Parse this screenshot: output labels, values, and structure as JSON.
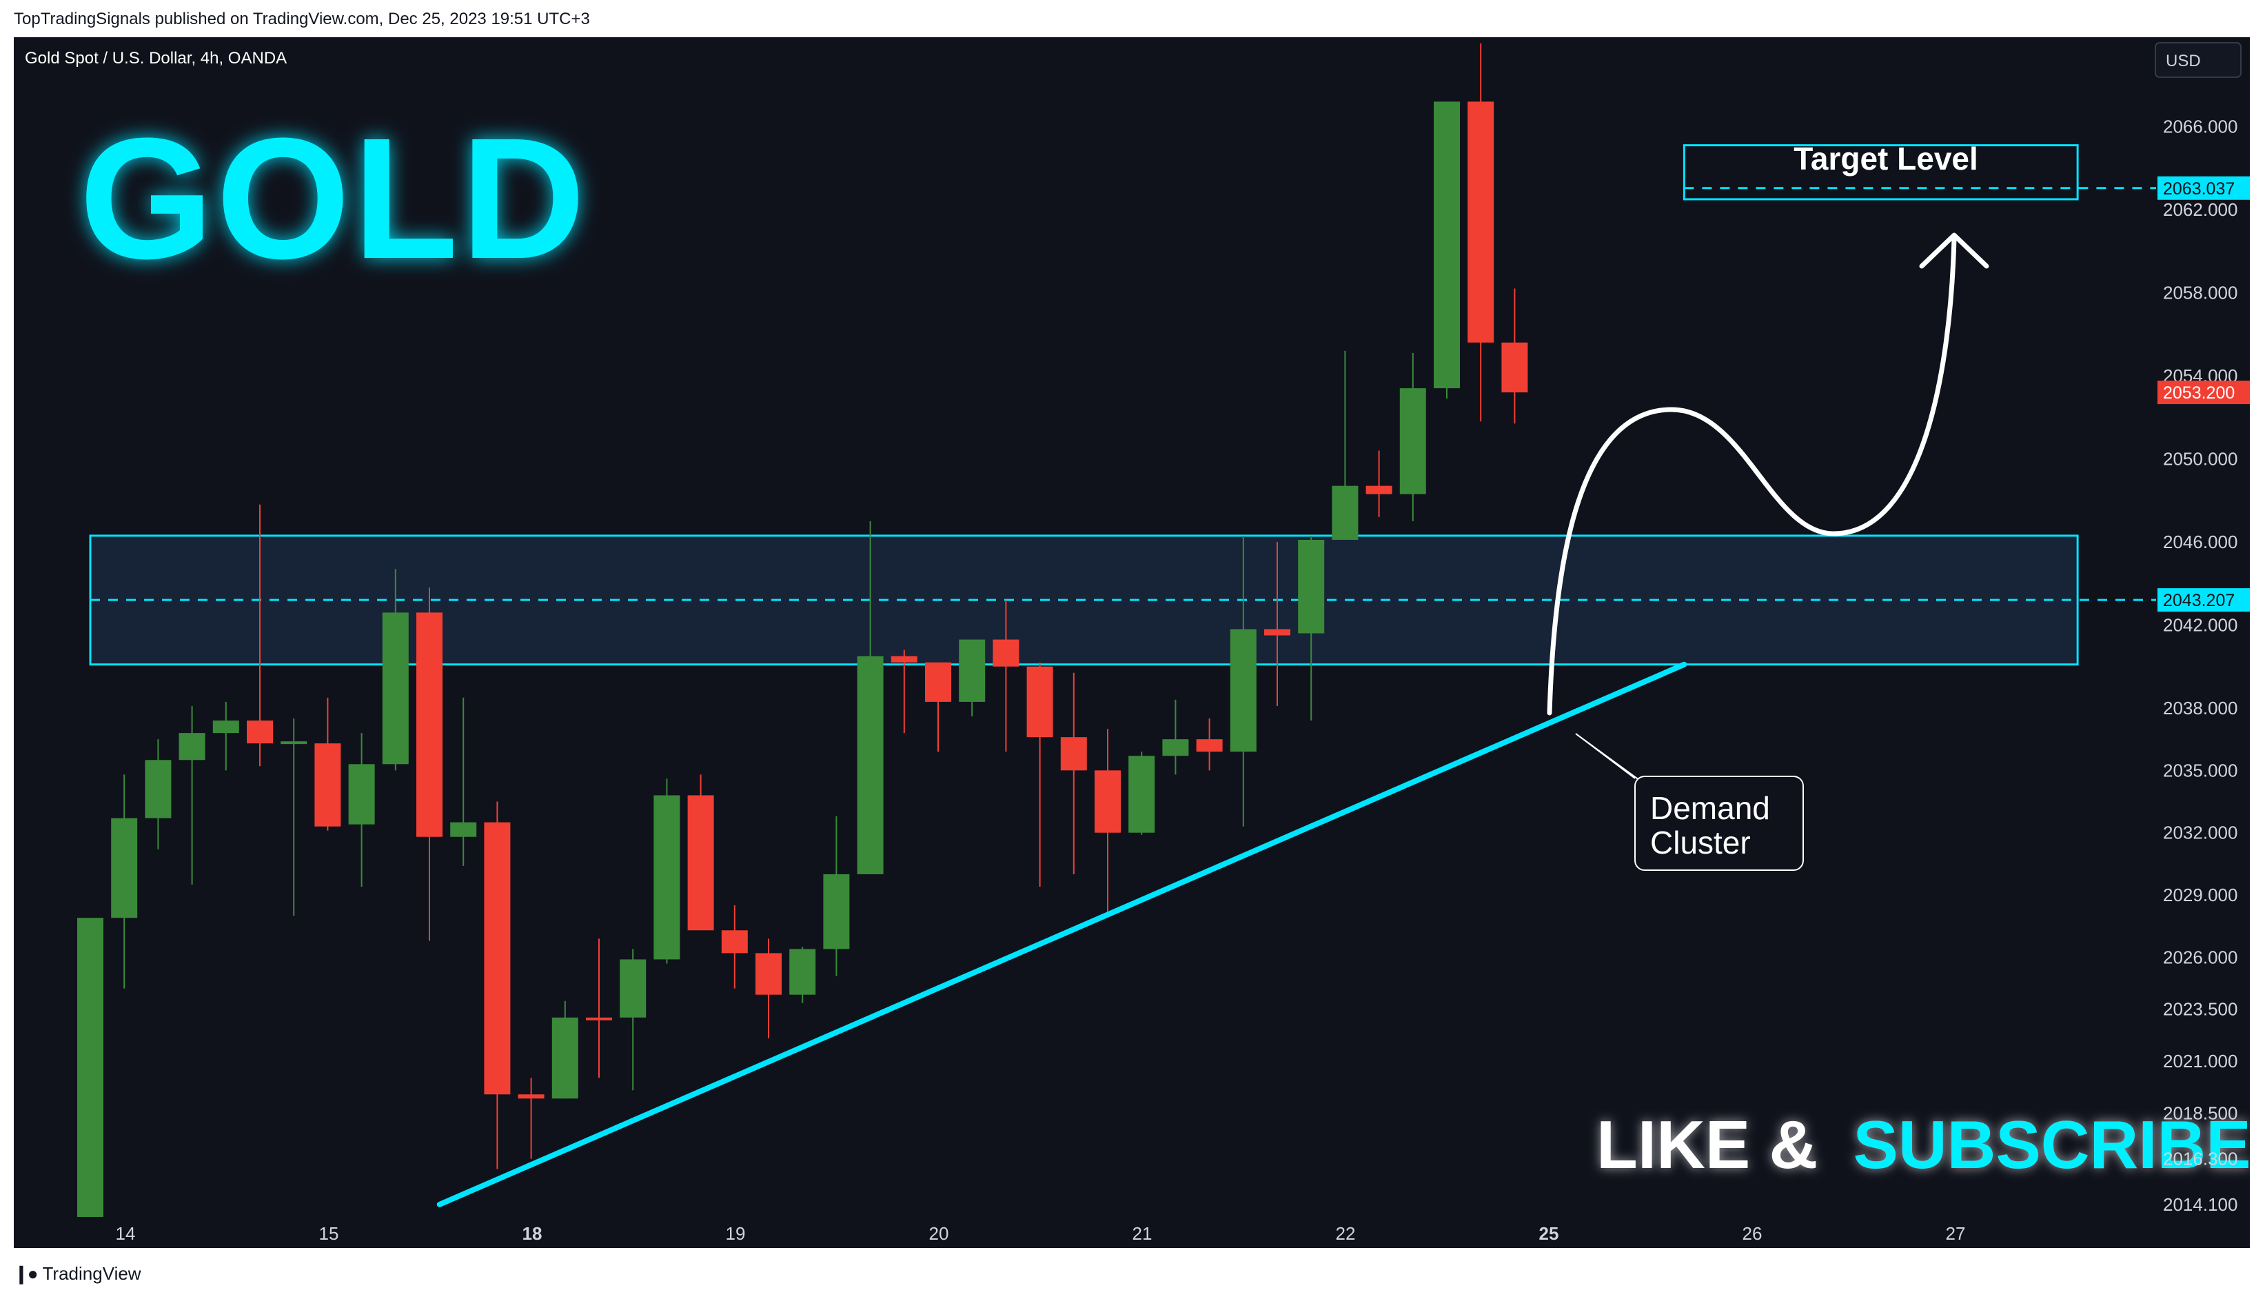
{
  "header": {
    "publisher_line": "TopTradingSignals published on TradingView.com, Dec 25, 2023 19:51 UTC+3"
  },
  "footer": {
    "brand": "TradingView"
  },
  "chart_title": "Gold Spot / U.S. Dollar, 4h, OANDA",
  "currency_button": "USD",
  "overlay": {
    "big_title": "GOLD",
    "target_label": "Target Level",
    "demand_label_line1": "Demand",
    "demand_label_line2": "Cluster",
    "cta_white": "LIKE &",
    "cta_cyan": "SUBSCRIBE"
  },
  "colors": {
    "background": "#0f121b",
    "up": "#3a8a3a",
    "down": "#f23f34",
    "accent": "#00e5ff",
    "text": "#d1d4dc"
  },
  "chart_data": {
    "type": "candlestick",
    "title": "Gold Spot / U.S. Dollar, 4h, OANDA",
    "x_tick_labels": [
      "14",
      "15",
      "18",
      "19",
      "20",
      "21",
      "22",
      "25",
      "26",
      "27"
    ],
    "y_tick_labels": [
      "2066.000",
      "2062.000",
      "2058.000",
      "2054.000",
      "2050.000",
      "2046.000",
      "2042.000",
      "2038.000",
      "2035.000",
      "2032.000",
      "2029.000",
      "2026.000",
      "2023.500",
      "2021.000",
      "2018.500",
      "2016.300",
      "2014.100"
    ],
    "y_ticks": [
      2066.0,
      2062.0,
      2058.0,
      2054.0,
      2050.0,
      2046.0,
      2042.0,
      2038.0,
      2035.0,
      2032.0,
      2029.0,
      2026.0,
      2023.5,
      2021.0,
      2018.5,
      2016.3,
      2014.1
    ],
    "ylim": [
      2013.2,
      2070.3
    ],
    "price_labels": [
      {
        "text": "2063.037",
        "value": 2063.037,
        "color": "#00e5ff"
      },
      {
        "text": "2053.200",
        "value": 2053.2,
        "color": "#f23f34"
      },
      {
        "text": "2043.207",
        "value": 2043.207,
        "color": "#00e5ff"
      }
    ],
    "zones": [
      {
        "name": "Demand zone",
        "from_bar": 0,
        "to_bar": 58.6,
        "low": 2040.1,
        "high": 2046.3,
        "mid": 2043.207
      },
      {
        "name": "Target zone",
        "from_bar": 47.0,
        "to_bar": 58.6,
        "low": 2062.5,
        "high": 2065.1,
        "mid": 2063.037
      }
    ],
    "trendline": {
      "from": [
        10.3,
        2014.1
      ],
      "to": [
        47.0,
        2040.1
      ]
    },
    "candles": [
      {
        "o": 2013.5,
        "h": 2027.8,
        "l": 2013.5,
        "c": 2027.9
      },
      {
        "o": 2027.9,
        "h": 2034.8,
        "l": 2024.5,
        "c": 2032.7
      },
      {
        "o": 2032.7,
        "h": 2036.5,
        "l": 2031.2,
        "c": 2035.5
      },
      {
        "o": 2035.5,
        "h": 2038.1,
        "l": 2029.5,
        "c": 2036.8
      },
      {
        "o": 2036.8,
        "h": 2038.3,
        "l": 2035.0,
        "c": 2037.4
      },
      {
        "o": 2037.4,
        "h": 2047.8,
        "l": 2035.2,
        "c": 2036.3
      },
      {
        "o": 2036.3,
        "h": 2037.5,
        "l": 2028.0,
        "c": 2036.4
      },
      {
        "o": 2036.3,
        "h": 2038.5,
        "l": 2032.1,
        "c": 2032.3
      },
      {
        "o": 2032.4,
        "h": 2036.8,
        "l": 2029.4,
        "c": 2035.3
      },
      {
        "o": 2035.3,
        "h": 2044.7,
        "l": 2035.0,
        "c": 2042.6
      },
      {
        "o": 2042.6,
        "h": 2043.8,
        "l": 2026.8,
        "c": 2031.8
      },
      {
        "o": 2031.8,
        "h": 2038.5,
        "l": 2030.4,
        "c": 2032.5
      },
      {
        "o": 2032.5,
        "h": 2033.5,
        "l": 2015.8,
        "c": 2019.4
      },
      {
        "o": 2019.4,
        "h": 2020.2,
        "l": 2016.3,
        "c": 2019.2
      },
      {
        "o": 2019.2,
        "h": 2023.9,
        "l": 2019.2,
        "c": 2023.1
      },
      {
        "o": 2023.1,
        "h": 2026.9,
        "l": 2020.2,
        "c": 2023.0
      },
      {
        "o": 2023.1,
        "h": 2026.4,
        "l": 2019.6,
        "c": 2025.9
      },
      {
        "o": 2025.9,
        "h": 2034.6,
        "l": 2025.7,
        "c": 2033.8
      },
      {
        "o": 2033.8,
        "h": 2034.8,
        "l": 2027.4,
        "c": 2027.3
      },
      {
        "o": 2027.3,
        "h": 2028.5,
        "l": 2024.5,
        "c": 2026.2
      },
      {
        "o": 2026.2,
        "h": 2026.9,
        "l": 2022.1,
        "c": 2024.2
      },
      {
        "o": 2024.2,
        "h": 2026.5,
        "l": 2023.8,
        "c": 2026.4
      },
      {
        "o": 2026.4,
        "h": 2032.8,
        "l": 2025.1,
        "c": 2030.0
      },
      {
        "o": 2030.0,
        "h": 2047.0,
        "l": 2030.2,
        "c": 2040.5
      },
      {
        "o": 2040.5,
        "h": 2040.8,
        "l": 2036.8,
        "c": 2040.2
      },
      {
        "o": 2040.2,
        "h": 2040.2,
        "l": 2035.9,
        "c": 2038.3
      },
      {
        "o": 2038.3,
        "h": 2041.2,
        "l": 2037.6,
        "c": 2041.3
      },
      {
        "o": 2041.3,
        "h": 2043.2,
        "l": 2035.9,
        "c": 2040.0
      },
      {
        "o": 2040.0,
        "h": 2040.2,
        "l": 2029.4,
        "c": 2036.6
      },
      {
        "o": 2036.6,
        "h": 2039.7,
        "l": 2030.0,
        "c": 2035.0
      },
      {
        "o": 2035.0,
        "h": 2037.0,
        "l": 2028.2,
        "c": 2032.0
      },
      {
        "o": 2032.0,
        "h": 2035.9,
        "l": 2031.9,
        "c": 2035.7
      },
      {
        "o": 2035.7,
        "h": 2038.4,
        "l": 2034.8,
        "c": 2036.5
      },
      {
        "o": 2036.5,
        "h": 2037.5,
        "l": 2035.0,
        "c": 2035.9
      },
      {
        "o": 2035.9,
        "h": 2046.3,
        "l": 2032.3,
        "c": 2041.8
      },
      {
        "o": 2041.8,
        "h": 2046.0,
        "l": 2038.1,
        "c": 2041.5
      },
      {
        "o": 2041.6,
        "h": 2046.3,
        "l": 2037.4,
        "c": 2046.1
      },
      {
        "o": 2046.1,
        "h": 2055.2,
        "l": 2046.2,
        "c": 2048.7
      },
      {
        "o": 2048.7,
        "h": 2050.4,
        "l": 2047.2,
        "c": 2048.3
      },
      {
        "o": 2048.3,
        "h": 2055.1,
        "l": 2047.0,
        "c": 2053.4
      },
      {
        "o": 2053.4,
        "h": 2066.7,
        "l": 2052.9,
        "c": 2067.2
      },
      {
        "o": 2067.2,
        "h": 2070.0,
        "l": 2051.8,
        "c": 2055.6
      },
      {
        "o": 2055.6,
        "h": 2058.2,
        "l": 2051.7,
        "c": 2053.2
      }
    ]
  }
}
